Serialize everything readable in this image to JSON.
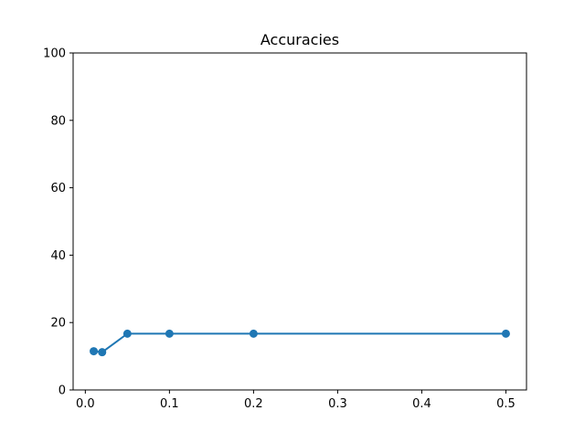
{
  "chart_data": {
    "type": "line",
    "title": "Accuracies",
    "xlabel": "",
    "ylabel": "",
    "x": [
      0.01,
      0.02,
      0.05,
      0.1,
      0.2,
      0.5
    ],
    "series": [
      {
        "values": [
          11.5,
          11.2,
          16.7,
          16.7,
          16.7,
          16.7
        ],
        "color": "#1f77b4",
        "marker": "circle"
      }
    ],
    "xlim": [
      -0.0145,
      0.5245
    ],
    "ylim": [
      0,
      100
    ],
    "xticks": [
      0.0,
      0.1,
      0.2,
      0.3,
      0.4,
      0.5
    ],
    "xtick_labels": [
      "0.0",
      "0.1",
      "0.2",
      "0.3",
      "0.4",
      "0.5"
    ],
    "yticks": [
      0,
      20,
      40,
      60,
      80,
      100
    ],
    "ytick_labels": [
      "0",
      "20",
      "40",
      "60",
      "80",
      "100"
    ],
    "grid": false,
    "legend": "none"
  }
}
